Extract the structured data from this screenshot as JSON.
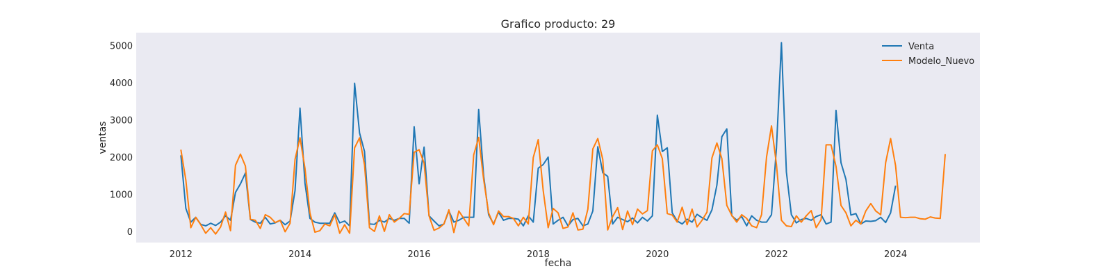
{
  "chart_data": {
    "type": "line",
    "title": "Grafico producto: 29",
    "xlabel": "fecha",
    "ylabel": "ventas",
    "xlim": [
      "2011-04-01",
      "2025-06-01"
    ],
    "ylim": [
      -300,
      5350
    ],
    "x_ticks": [
      "2012",
      "2014",
      "2016",
      "2018",
      "2020",
      "2022",
      "2024"
    ],
    "y_ticks": [
      0,
      1000,
      2000,
      3000,
      4000,
      5000
    ],
    "grid": false,
    "legend": "top-right",
    "colors": {
      "Venta": "#1f77b4",
      "Modelo_Nuevo": "#ff7f0e",
      "plot_bg": "#eaeaf2"
    },
    "series": [
      {
        "name": "Venta",
        "start": "2012-01",
        "frequency": "monthly",
        "values": [
          2050,
          620,
          250,
          380,
          190,
          150,
          220,
          160,
          250,
          420,
          300,
          1050,
          1280,
          1570,
          320,
          250,
          220,
          380,
          200,
          230,
          300,
          180,
          280,
          1100,
          3320,
          1300,
          350,
          250,
          220,
          220,
          220,
          500,
          230,
          280,
          150,
          3990,
          2650,
          2150,
          200,
          190,
          300,
          250,
          350,
          300,
          350,
          350,
          220,
          2820,
          1280,
          2270,
          420,
          280,
          150,
          200,
          550,
          250,
          300,
          380,
          380,
          380,
          3280,
          1500,
          450,
          200,
          520,
          300,
          350,
          350,
          330,
          150,
          420,
          250,
          1700,
          1800,
          2000,
          200,
          300,
          380,
          150,
          320,
          350,
          150,
          200,
          550,
          2280,
          1580,
          1480,
          200,
          380,
          320,
          260,
          360,
          230,
          380,
          280,
          420,
          3130,
          2150,
          2250,
          500,
          280,
          200,
          330,
          250,
          460,
          370,
          300,
          580,
          1250,
          2550,
          2760,
          420,
          300,
          400,
          150,
          420,
          300,
          250,
          250,
          450,
          2250,
          5080,
          1600,
          450,
          230,
          320,
          350,
          300,
          400,
          450,
          200,
          250,
          3260,
          1850,
          1400,
          440,
          480,
          200,
          280,
          270,
          290,
          380,
          240,
          500,
          1230
        ]
      },
      {
        "name": "Modelo_Nuevo",
        "start": "2012-01",
        "frequency": "monthly",
        "values": [
          2200,
          1380,
          100,
          380,
          180,
          -50,
          100,
          -70,
          120,
          520,
          20,
          1780,
          2080,
          1760,
          330,
          300,
          80,
          450,
          380,
          240,
          300,
          -10,
          220,
          1940,
          2520,
          1700,
          500,
          -20,
          20,
          200,
          150,
          450,
          -50,
          180,
          -50,
          2250,
          2520,
          1790,
          100,
          0,
          420,
          0,
          450,
          250,
          350,
          480,
          460,
          2130,
          2200,
          1840,
          420,
          30,
          90,
          200,
          580,
          -30,
          550,
          350,
          150,
          2060,
          2530,
          1400,
          500,
          180,
          550,
          400,
          400,
          350,
          150,
          380,
          200,
          1990,
          2470,
          1100,
          100,
          620,
          500,
          80,
          120,
          500,
          40,
          60,
          600,
          2220,
          2500,
          1940,
          40,
          400,
          640,
          50,
          550,
          180,
          600,
          470,
          560,
          2170,
          2330,
          1960,
          480,
          440,
          250,
          650,
          180,
          600,
          120,
          300,
          520,
          1980,
          2380,
          1960,
          700,
          430,
          250,
          450,
          350,
          150,
          100,
          450,
          2000,
          2840,
          1800,
          300,
          150,
          130,
          420,
          250,
          420,
          560,
          100,
          320,
          2330,
          2330,
          1750,
          700,
          500,
          150,
          300,
          200,
          550,
          750,
          550,
          450,
          1850,
          2500,
          1770,
          380,
          370,
          380,
          380,
          340,
          330,
          390,
          360,
          350,
          2080
        ]
      }
    ]
  }
}
